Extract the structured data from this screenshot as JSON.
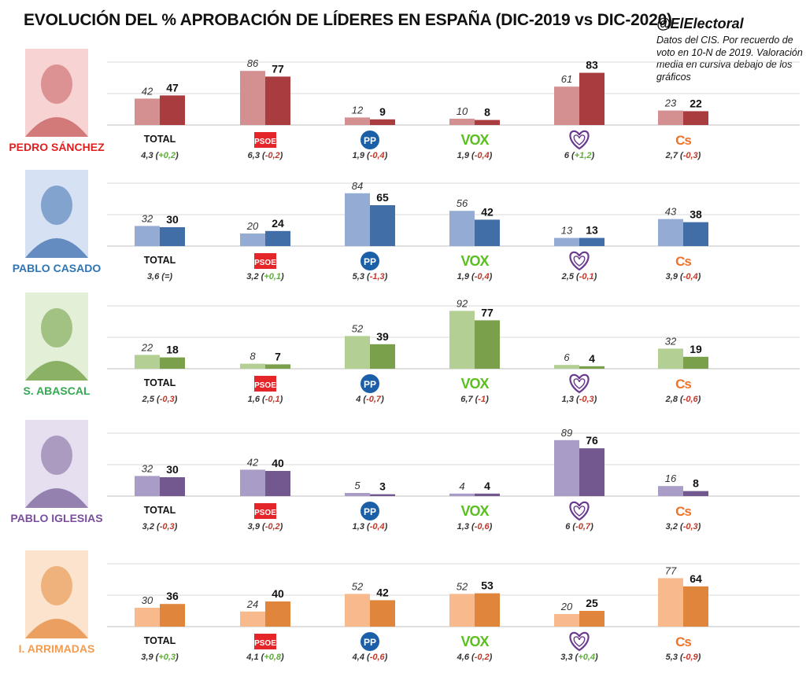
{
  "title": "EVOLUCIÓN DEL % APROBACIÓN DE LÍDERES EN ESPAÑA (DIC-2019 vs DIC-2020)",
  "handle": "@ElElectoral",
  "note": "Datos del CIS. Por recuerdo de voto en 10-N de 2019. Valoración media en cursiva debajo de los gráficos",
  "chart_data": {
    "type": "bar",
    "categories": [
      "TOTAL",
      "PSOE",
      "PP",
      "VOX",
      "Unidas Podemos",
      "Cs"
    ],
    "category_icons": [
      "total-label",
      "psoe-logo",
      "pp-logo",
      "vox-logo",
      "podemos-logo",
      "cs-logo"
    ],
    "series_years": [
      "DIC-2019",
      "DIC-2020"
    ],
    "leaders": [
      {
        "name": "PEDRO SÁNCHEZ",
        "name_color": "#e0201f",
        "bar_colors": [
          "#d49090",
          "#a83c3f"
        ],
        "v2019": [
          42,
          86,
          12,
          10,
          61,
          23
        ],
        "v2020": [
          47,
          77,
          9,
          8,
          83,
          22
        ],
        "ratings": [
          "4,3",
          "6,3",
          "1,9",
          "1,9",
          "6",
          "2,7"
        ],
        "deltas": [
          "+0,2",
          "-0,2",
          "-0,4",
          "-0,4",
          "+1,2",
          "-0,3"
        ]
      },
      {
        "name": "PABLO CASADO",
        "name_color": "#2f75b5",
        "bar_colors": [
          "#94acd4",
          "#416ea6"
        ],
        "v2019": [
          32,
          20,
          84,
          56,
          13,
          43
        ],
        "v2020": [
          30,
          24,
          65,
          42,
          13,
          38
        ],
        "ratings": [
          "3,6",
          "3,2",
          "5,3",
          "1,9",
          "2,5",
          "3,9"
        ],
        "deltas": [
          "=",
          "+0,1",
          "-1,3",
          "-0,4",
          "-0,1",
          "-0,4"
        ]
      },
      {
        "name": "S. ABASCAL",
        "name_color": "#34a853",
        "bar_colors": [
          "#b3cf93",
          "#7ba04b"
        ],
        "v2019": [
          22,
          8,
          52,
          92,
          6,
          32
        ],
        "v2020": [
          18,
          7,
          39,
          77,
          4,
          19
        ],
        "ratings": [
          "2,5",
          "1,6",
          "4",
          "6,7",
          "1,3",
          "2,8"
        ],
        "deltas": [
          "-0,3",
          "-0,1",
          "-0,7",
          "-1",
          "-0,3",
          "-0,6"
        ]
      },
      {
        "name": "PABLO IGLESIAS",
        "name_color": "#7a4e9c",
        "bar_colors": [
          "#a99cc6",
          "#73588f"
        ],
        "v2019": [
          32,
          42,
          5,
          4,
          89,
          16
        ],
        "v2020": [
          30,
          40,
          3,
          4,
          76,
          8
        ],
        "ratings": [
          "3,2",
          "3,9",
          "1,3",
          "1,3",
          "6",
          "3,2"
        ],
        "deltas": [
          "-0,3",
          "-0,2",
          "-0,4",
          "-0,6",
          "-0,7",
          "-0,3"
        ]
      },
      {
        "name": "I. ARRIMADAS",
        "name_color": "#f39c50",
        "bar_colors": [
          "#f8b98d",
          "#e0853c"
        ],
        "v2019": [
          30,
          24,
          52,
          52,
          20,
          77
        ],
        "v2020": [
          36,
          40,
          42,
          53,
          25,
          64
        ],
        "ratings": [
          "3,9",
          "4,1",
          "4,4",
          "4,6",
          "3,3",
          "5,3"
        ],
        "deltas": [
          "+0,3",
          "+0,8",
          "-0,6",
          "-0,2",
          "+0,4",
          "-0,9"
        ]
      }
    ],
    "logo_text": {
      "total": "TOTAL",
      "psoe": "PSOE",
      "pp": "PP",
      "vox": "VOX",
      "cs": "Cs"
    },
    "colors": {
      "psoe": "#e4262a",
      "pp": "#1b5fa8",
      "vox": "#5bbf21",
      "podemos": "#6b3a8f",
      "cs": "#ee7328",
      "delta_up": "#5fae3a",
      "delta_down": "#c0392b",
      "delta_equal": "#333333"
    },
    "ylim": [
      0,
      100
    ],
    "grid": true
  }
}
